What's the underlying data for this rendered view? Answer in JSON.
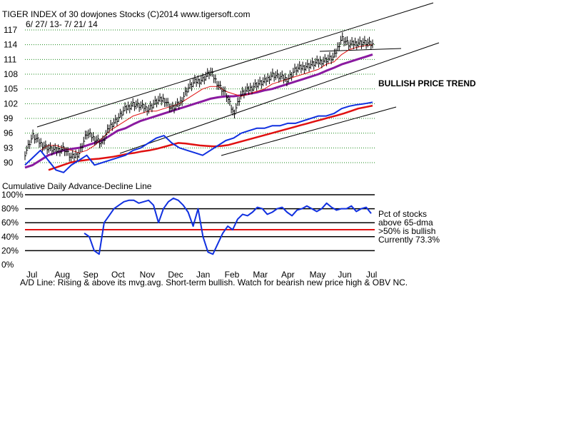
{
  "header": {
    "title": "TIGER INDEX of  30 dowjones Stocks  (C)2014  www.tigersoft.com",
    "date_range": "6/ 27/ 13-  7/ 21/ 14"
  },
  "annotations": {
    "trend": "BULLISH PRICE TREND",
    "pct_line1": "Pct of stocks",
    "pct_line2": "above 65-dma",
    "bullish_rule": ">50% is bullish",
    "currently": "Currently  73.3%"
  },
  "lower_panel_title": "Cumulative Daily Advance-Decline Line",
  "footer": "A/D Line: Rising & above its mvg.avg. Short-term bullish. Watch for bearish new price high & OBV NC.",
  "colors": {
    "price": "#000000",
    "ma_short": "#e01010",
    "ma_long": "#8a1aa0",
    "ad_line": "#1030e0",
    "ad_ma": "#e01010",
    "gridline": "#1a8a1a",
    "trendline": "#000000",
    "threshold": "#e01010"
  },
  "chart_data": [
    {
      "type": "line",
      "title": "TIGER INDEX of  30 dowjones Stocks  (C)2014  www.tigersoft.com",
      "subtitle": "6/ 27/ 13-  7/ 21/ 14",
      "x_labels": [
        "Jul",
        "Aug",
        "Sep",
        "Oct",
        "Nov",
        "Dec",
        "Jan",
        "Feb",
        "Mar",
        "Apr",
        "May",
        "Jun",
        "Jul"
      ],
      "y_ticks": [
        90,
        93,
        96,
        99,
        102,
        105,
        108,
        111,
        114,
        117
      ],
      "ylim": [
        88,
        118
      ],
      "grid": true,
      "series": [
        {
          "values": [
            92.0,
            95.5,
            94.0,
            93.0,
            92.5,
            93.0,
            91.0,
            92.0,
            96.0,
            95.0,
            94.0,
            97.5,
            99.0,
            101.0,
            102.0,
            101.5,
            101.0,
            102.5,
            103.0,
            101.0,
            102.0,
            105.0,
            106.5,
            107.0,
            108.5,
            106.0,
            104.0,
            100.0,
            104.0,
            105.0,
            106.0,
            106.5,
            108.0,
            107.5,
            107.0,
            109.0,
            109.5,
            110.0,
            110.5,
            111.0,
            111.5,
            115.5,
            114.0,
            114.5,
            114.5,
            114.0
          ]
        },
        {
          "values": [
            89.5,
            91.0,
            92.5,
            93.5,
            93.5,
            93.0,
            92.5,
            92.0,
            92.5,
            93.5,
            95.0,
            96.5,
            97.5,
            98.5,
            99.5,
            100.0,
            100.5,
            100.5,
            101.0,
            101.5,
            102.0,
            103.0,
            104.0,
            105.0,
            105.5,
            105.5,
            104.5,
            104.0,
            103.5,
            104.0,
            104.5,
            105.0,
            106.0,
            106.5,
            107.0,
            107.5,
            108.0,
            108.5,
            109.0,
            110.0,
            110.5,
            112.0,
            113.0,
            113.5,
            113.8,
            114.0
          ]
        },
        {
          "values": [
            89.0,
            89.5,
            90.5,
            91.5,
            92.0,
            92.5,
            92.8,
            93.0,
            93.5,
            94.0,
            94.5,
            95.5,
            96.5,
            97.0,
            97.8,
            98.5,
            99.0,
            99.5,
            100.0,
            100.5,
            101.0,
            101.5,
            102.0,
            102.5,
            103.0,
            103.3,
            103.5,
            103.5,
            103.7,
            104.0,
            104.3,
            104.7,
            105.0,
            105.5,
            106.0,
            106.5,
            107.0,
            107.5,
            108.0,
            108.7,
            109.3,
            110.0,
            110.5,
            111.0,
            111.5,
            112.0
          ]
        }
      ]
    },
    {
      "type": "line",
      "title": "Cumulative Daily Advance-Decline Line",
      "series": [
        {
          "values": [
            89.5,
            91.0,
            92.5,
            90.5,
            88.5,
            88.0,
            89.5,
            90.5,
            91.5,
            89.5,
            90.0,
            90.5,
            91.0,
            91.5,
            92.5,
            93.0,
            94.0,
            95.0,
            95.5,
            94.0,
            93.0,
            92.5,
            92.0,
            91.5,
            92.5,
            93.5,
            94.5,
            95.0,
            96.0,
            96.5,
            97.0,
            97.0,
            97.5,
            97.5,
            98.0,
            98.0,
            98.5,
            99.0,
            99.5,
            99.5,
            100.0,
            101.0,
            101.5,
            101.8,
            102.0,
            102.3
          ]
        },
        {
          "values": [
            88.5,
            89.0,
            89.5,
            90.0,
            90.3,
            90.5,
            90.7,
            90.8,
            91.0,
            91.2,
            91.5,
            91.8,
            92.0,
            92.3,
            92.5,
            92.8,
            93.2,
            93.6,
            94.0,
            93.9,
            93.7,
            93.5,
            93.4,
            93.3,
            93.4,
            93.6,
            94.0,
            94.4,
            94.8,
            95.2,
            95.6,
            96.0,
            96.4,
            96.8,
            97.2,
            97.6,
            98.0,
            98.4,
            98.8,
            99.2,
            99.6,
            100.0,
            100.5,
            101.0,
            101.3,
            101.6
          ]
        }
      ]
    },
    {
      "type": "line",
      "title": "Pct of stocks above 65-dma",
      "y_ticks": [
        "0%",
        "20%",
        "40%",
        "60%",
        "80%",
        "100%"
      ],
      "ylim": [
        0,
        100
      ],
      "threshold": 50,
      "series": [
        {
          "values": [
            null,
            null,
            null,
            null,
            null,
            null,
            null,
            null,
            null,
            null,
            null,
            null,
            45,
            40,
            20,
            15,
            60,
            70,
            80,
            85,
            90,
            92,
            92,
            88,
            90,
            92,
            85,
            60,
            80,
            90,
            95,
            92,
            85,
            75,
            55,
            80,
            40,
            18,
            15,
            30,
            45,
            55,
            50,
            65,
            72,
            70,
            75,
            82,
            80,
            72,
            75,
            80,
            82,
            75,
            70,
            78,
            80,
            84,
            80,
            76,
            80,
            88,
            82,
            78,
            80,
            80,
            84,
            76,
            80,
            82,
            73.3
          ]
        }
      ]
    }
  ]
}
